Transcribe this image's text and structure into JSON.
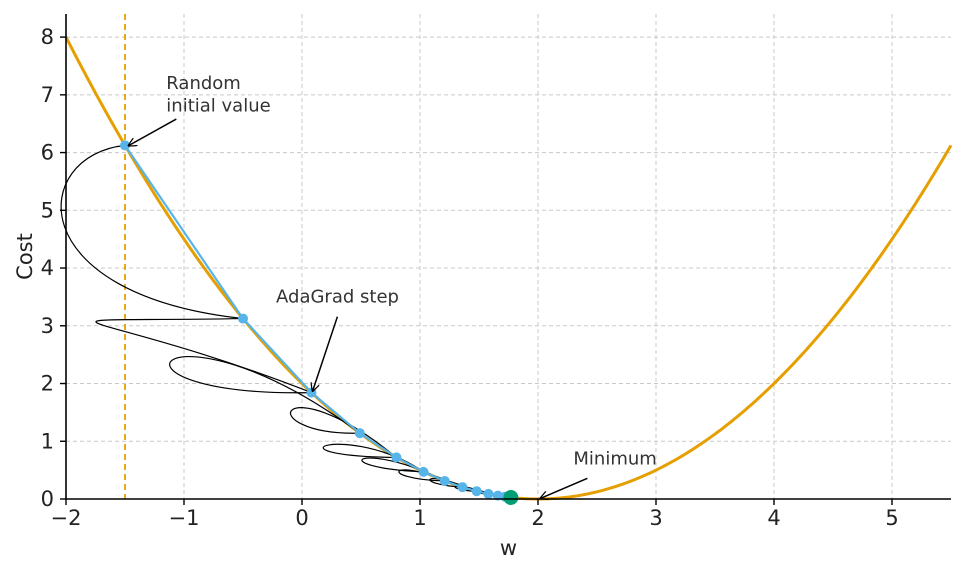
{
  "chart_data": {
    "type": "line",
    "xlabel": "w",
    "ylabel": "Cost",
    "xlim": [
      -2,
      5.5
    ],
    "ylim": [
      0,
      8.4
    ],
    "xticks": [
      -2,
      -1,
      0,
      1,
      2,
      3,
      4,
      5
    ],
    "xtick_labels": [
      "−2",
      "−1",
      "0",
      "1",
      "2",
      "3",
      "4",
      "5"
    ],
    "yticks": [
      0,
      1,
      2,
      3,
      4,
      5,
      6,
      7,
      8
    ],
    "ytick_labels": [
      "0",
      "1",
      "2",
      "3",
      "4",
      "5",
      "6",
      "7",
      "8"
    ],
    "grid": true,
    "cost_curve": {
      "formula": "0.5 * (w - 2)^2",
      "x_range": [
        -2,
        5.5
      ],
      "color": "#E69F00"
    },
    "initial_marker": {
      "x": -1.5,
      "color": "#E69F00",
      "style": "dashed"
    },
    "adagrad_path": {
      "color": "#56B4E9",
      "points": [
        {
          "x": -1.5,
          "y": 6.125
        },
        {
          "x": -0.5,
          "y": 3.125
        },
        {
          "x": 0.08,
          "y": 1.843
        },
        {
          "x": 0.49,
          "y": 1.14
        },
        {
          "x": 0.8,
          "y": 0.72
        },
        {
          "x": 1.03,
          "y": 0.47
        },
        {
          "x": 1.21,
          "y": 0.312
        },
        {
          "x": 1.36,
          "y": 0.205
        },
        {
          "x": 1.48,
          "y": 0.135
        },
        {
          "x": 1.58,
          "y": 0.088
        },
        {
          "x": 1.66,
          "y": 0.058
        },
        {
          "x": 1.72,
          "y": 0.039
        }
      ]
    },
    "final_point": {
      "x": 1.77,
      "y": 0.026,
      "color": "#009E73"
    },
    "annotations": [
      {
        "text_lines": [
          "Random",
          "initial value"
        ],
        "text_x": -1.15,
        "text_y": 7.1,
        "target_x": -1.47,
        "target_y": 6.12
      },
      {
        "text_lines": [
          "AdaGrad step"
        ],
        "text_x": -0.22,
        "text_y": 3.4,
        "target_x": 0.09,
        "target_y": 1.87
      },
      {
        "text_lines": [
          "Minimum"
        ],
        "text_x": 2.3,
        "text_y": 0.6,
        "target_x": 2.02,
        "target_y": 0.01
      }
    ],
    "step_loops": [
      {
        "from": [
          -1.5,
          6.125
        ],
        "to": [
          -0.5,
          3.125
        ],
        "c1": [
          -2.3,
          5.95
        ],
        "c2": [
          -2.4,
          3.55
        ]
      },
      {
        "from": [
          -0.5,
          3.125
        ],
        "to": [
          0.08,
          1.843
        ],
        "c1": [
          -2.6,
          3.05
        ],
        "c2": [
          -1.8,
          3.35
        ]
      },
      {
        "from": [
          0.08,
          1.843
        ],
        "to": [
          0.49,
          1.14
        ],
        "c1": [
          -1.9,
          1.75
        ],
        "c2": [
          -1.2,
          3.7
        ]
      },
      {
        "from": [
          0.49,
          1.14
        ],
        "to": [
          0.8,
          0.72
        ],
        "c1": [
          -0.45,
          1.1
        ],
        "c2": [
          -0.2,
          2.4
        ]
      },
      {
        "from": [
          0.8,
          0.72
        ],
        "to": [
          1.03,
          0.47
        ],
        "c1": [
          -0.4,
          0.75
        ],
        "c2": [
          0.4,
          1.35
        ]
      },
      {
        "from": [
          1.03,
          0.47
        ],
        "to": [
          1.21,
          0.312
        ],
        "c1": [
          0.15,
          0.55
        ],
        "c2": [
          0.5,
          1.05
        ]
      },
      {
        "from": [
          1.21,
          0.312
        ],
        "to": [
          1.36,
          0.205
        ],
        "c1": [
          0.6,
          0.35
        ],
        "c2": [
          0.75,
          0.78
        ]
      },
      {
        "from": [
          1.36,
          0.205
        ],
        "to": [
          1.48,
          0.135
        ],
        "c1": [
          0.95,
          0.25
        ],
        "c2": [
          1.0,
          0.55
        ]
      },
      {
        "from": [
          1.48,
          0.135
        ],
        "to": [
          1.58,
          0.088
        ],
        "c1": [
          1.2,
          0.15
        ],
        "c2": [
          1.25,
          0.35
        ]
      },
      {
        "from": [
          1.58,
          0.088
        ],
        "to": [
          1.66,
          0.058
        ],
        "c1": [
          1.38,
          0.1
        ],
        "c2": [
          1.45,
          0.22
        ]
      }
    ]
  }
}
